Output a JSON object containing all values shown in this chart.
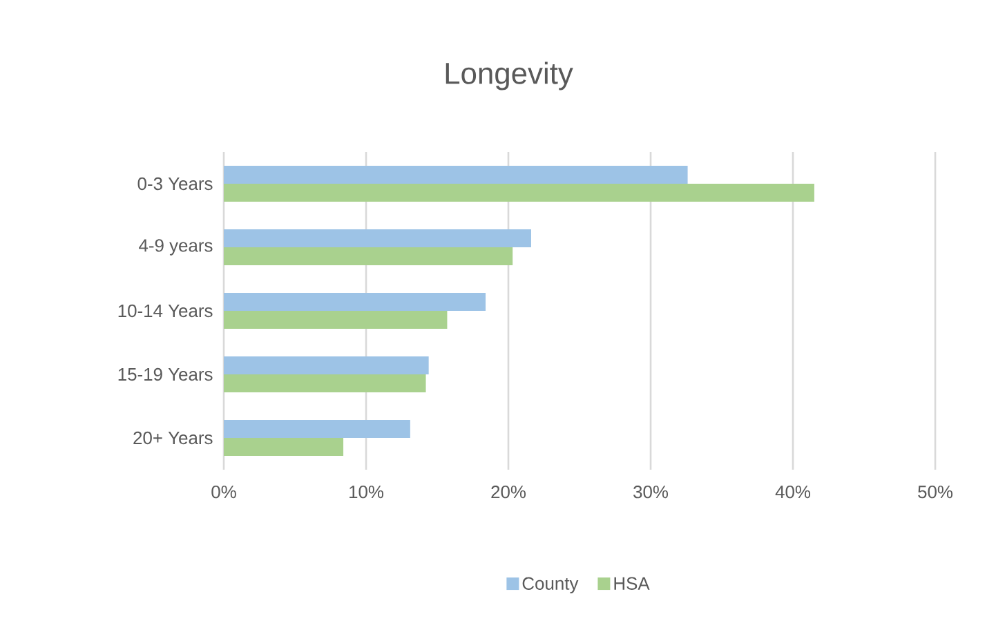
{
  "chart_data": {
    "type": "bar",
    "orientation": "horizontal",
    "title": "Longevity",
    "categories": [
      "0-3 Years",
      "4-9 years",
      "10-14 Years",
      "15-19 Years",
      "20+ Years"
    ],
    "series": [
      {
        "name": "County",
        "color": "#9dc3e6",
        "values": [
          32.6,
          21.6,
          18.4,
          14.4,
          13.1
        ]
      },
      {
        "name": "HSA",
        "color": "#a9d18e",
        "values": [
          41.5,
          20.3,
          15.7,
          14.2,
          8.4
        ]
      }
    ],
    "xlim": [
      0,
      50
    ],
    "xticks": [
      {
        "value": 0,
        "label": "0%"
      },
      {
        "value": 10,
        "label": "10%"
      },
      {
        "value": 20,
        "label": "20%"
      },
      {
        "value": 30,
        "label": "30%"
      },
      {
        "value": 40,
        "label": "40%"
      },
      {
        "value": 50,
        "label": "50%"
      }
    ],
    "grid": "x",
    "legend": "bottom"
  }
}
